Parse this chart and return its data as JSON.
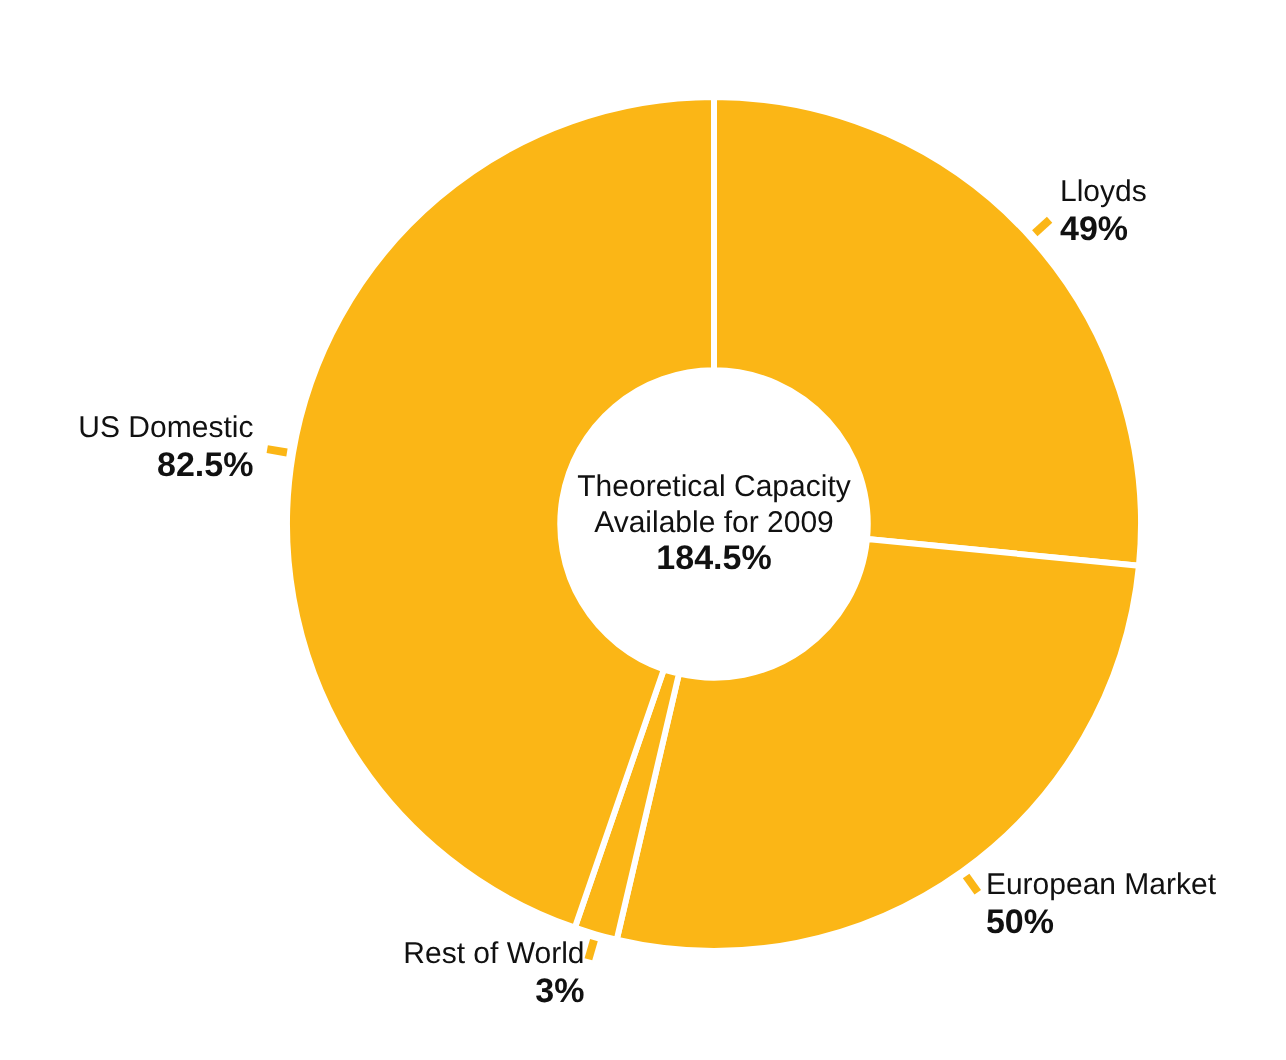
{
  "chart_data": {
    "type": "donut",
    "title": "Theoretical Capacity Available for 2009",
    "annotations": [
      "184.5%"
    ],
    "categories": [
      "Lloyds",
      "European Market",
      "Rest of World",
      "US Domestic"
    ],
    "values": [
      49,
      50,
      3,
      82.5
    ],
    "value_labels": [
      "49%",
      "50%",
      "3%",
      "82.5%"
    ],
    "colors": [
      "#fbb616",
      "#fbb616",
      "#fbb616",
      "#fbb616"
    ],
    "legend": false
  }
}
